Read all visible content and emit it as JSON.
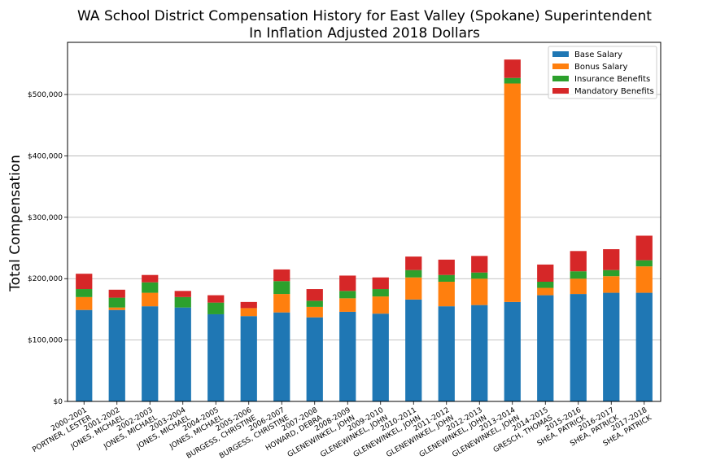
{
  "chart_data": {
    "type": "bar",
    "stacked": true,
    "title": "WA School District Compensation History for East Valley (Spokane) Superintendent",
    "subtitle": "In Inflation Adjusted 2018 Dollars",
    "xlabel": "",
    "ylabel": "Total Compensation",
    "ylim": [
      0,
      585000
    ],
    "yticks": [
      0,
      100000,
      200000,
      300000,
      400000,
      500000
    ],
    "ytick_labels": [
      "$0",
      "$100,000",
      "$200,000",
      "$300,000",
      "$400,000",
      "$500,000"
    ],
    "grid": "horizontal",
    "legend_position": "top-right",
    "categories": [
      [
        "2000-2001",
        "PORTNER, LESTER"
      ],
      [
        "2001-2002",
        "JONES, MICHAEL"
      ],
      [
        "2002-2003",
        "JONES, MICHAEL"
      ],
      [
        "2003-2004",
        "JONES, MICHAEL"
      ],
      [
        "2004-2005",
        "JONES, MICHAEL"
      ],
      [
        "2005-2006",
        "BURGESS, CHRISTINE"
      ],
      [
        "2006-2007",
        "BURGESS, CHRISTINE"
      ],
      [
        "2007-2008",
        "HOWARD, DEBRA"
      ],
      [
        "2008-2009",
        "GLENEWINKEL, JOHN"
      ],
      [
        "2009-2010",
        "GLENEWINKEL, JOHN"
      ],
      [
        "2010-2011",
        "GLENEWINKEL, JOHN"
      ],
      [
        "2011-2012",
        "GLENEWINKEL, JOHN"
      ],
      [
        "2012-2013",
        "GLENEWINKEL, JOHN"
      ],
      [
        "2013-2014",
        "GLENEWINKEL, JOHN"
      ],
      [
        "2014-2015",
        "GRESCH, THOMAS"
      ],
      [
        "2015-2016",
        "SHEA, PATRICK"
      ],
      [
        "2016-2017",
        "SHEA, PATRICK"
      ],
      [
        "2017-2018",
        "SHEA, PATRICK"
      ]
    ],
    "series": [
      {
        "name": "Base Salary",
        "color": "#1f77b4",
        "values": [
          149000,
          149000,
          155000,
          153000,
          142000,
          139000,
          145000,
          137000,
          146000,
          143000,
          166000,
          155000,
          157000,
          162000,
          173000,
          175000,
          177000,
          177000
        ]
      },
      {
        "name": "Bonus Salary",
        "color": "#ff7f0e",
        "values": [
          21000,
          4000,
          22000,
          0,
          0,
          13000,
          30000,
          17000,
          22000,
          28000,
          36000,
          40000,
          43000,
          356000,
          12000,
          25000,
          27000,
          43000
        ]
      },
      {
        "name": "Insurance Benefits",
        "color": "#2ca02c",
        "values": [
          13000,
          16000,
          17000,
          17000,
          19000,
          0,
          21000,
          10000,
          12000,
          12000,
          12000,
          11000,
          10000,
          9000,
          10000,
          12000,
          10000,
          10000
        ]
      },
      {
        "name": "Mandatory Benefits",
        "color": "#d62728",
        "values": [
          25000,
          13000,
          12000,
          10000,
          12000,
          10000,
          19000,
          19000,
          25000,
          19000,
          22000,
          25000,
          27000,
          30000,
          28000,
          33000,
          34000,
          40000
        ]
      }
    ]
  }
}
